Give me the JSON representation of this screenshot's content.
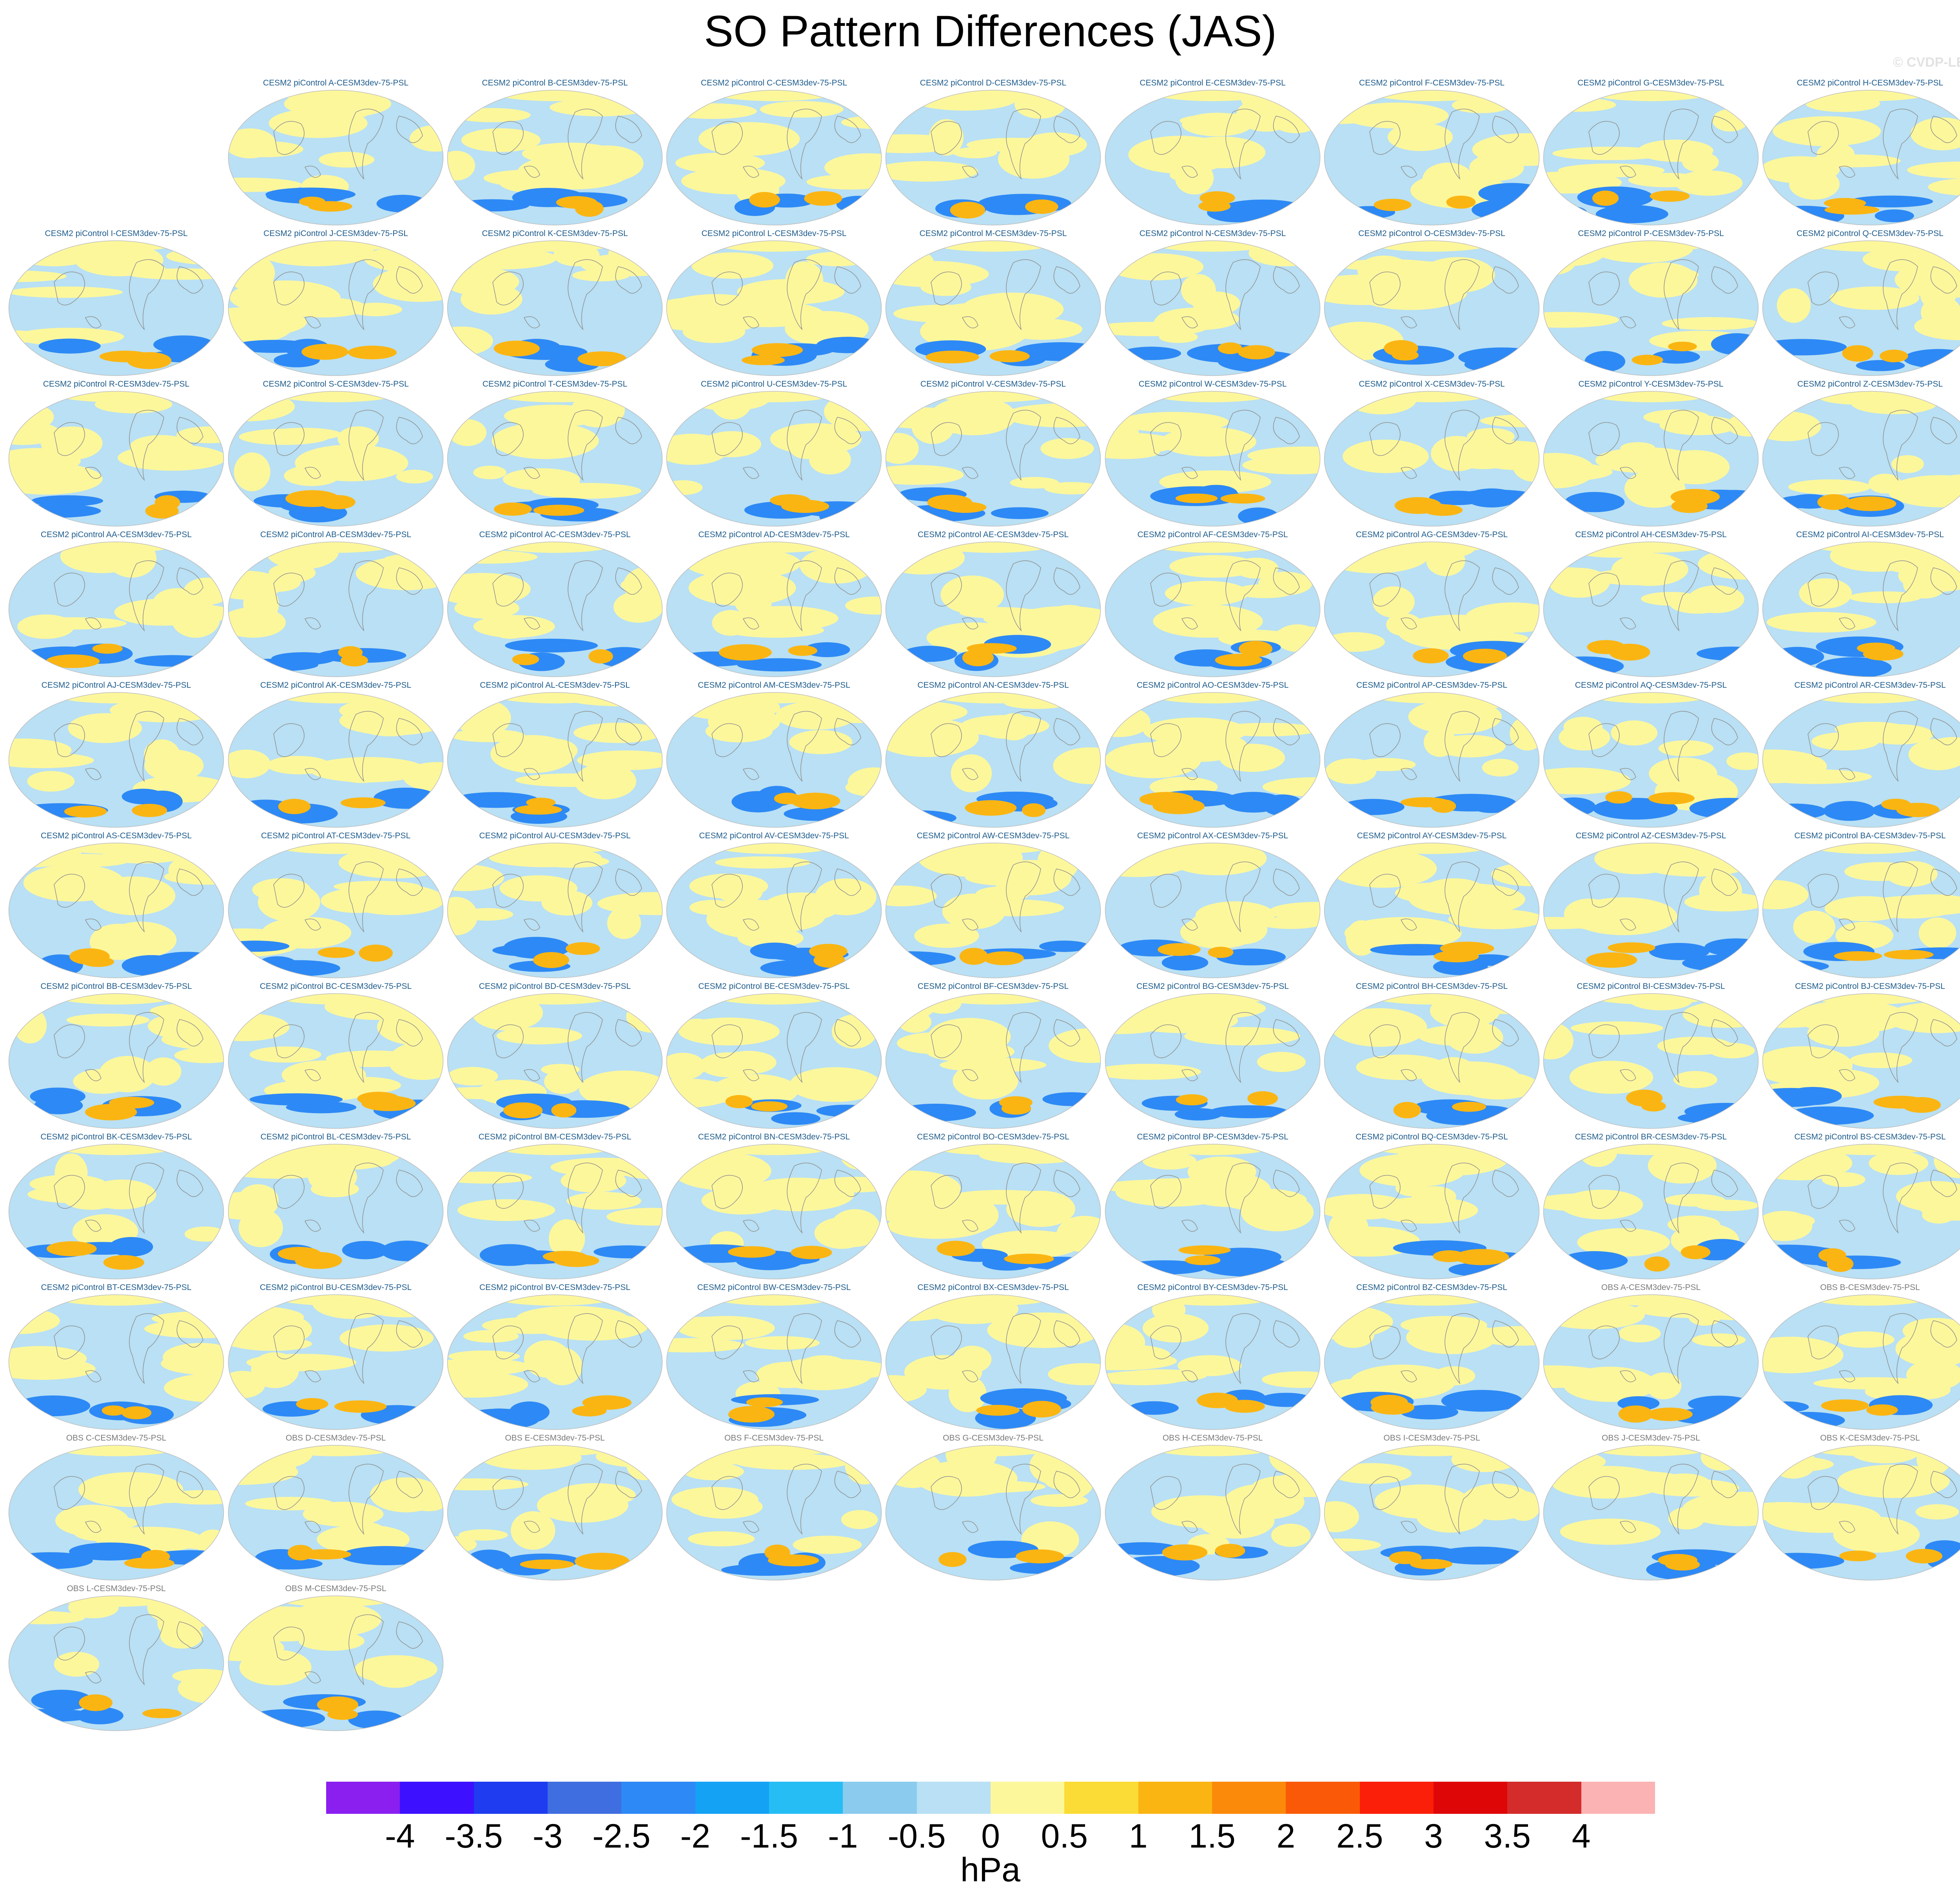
{
  "title": "SO Pattern Differences (JAS)",
  "credit": "© CVDP-LE",
  "panels": [
    {
      "label": "CESM2 piControl A-CESM3dev-75-PSL",
      "kind": "model"
    },
    {
      "label": "CESM2 piControl B-CESM3dev-75-PSL",
      "kind": "model"
    },
    {
      "label": "CESM2 piControl C-CESM3dev-75-PSL",
      "kind": "model"
    },
    {
      "label": "CESM2 piControl D-CESM3dev-75-PSL",
      "kind": "model"
    },
    {
      "label": "CESM2 piControl E-CESM3dev-75-PSL",
      "kind": "model"
    },
    {
      "label": "CESM2 piControl F-CESM3dev-75-PSL",
      "kind": "model"
    },
    {
      "label": "CESM2 piControl G-CESM3dev-75-PSL",
      "kind": "model"
    },
    {
      "label": "CESM2 piControl H-CESM3dev-75-PSL",
      "kind": "model"
    },
    {
      "label": "CESM2 piControl I-CESM3dev-75-PSL",
      "kind": "model"
    },
    {
      "label": "CESM2 piControl J-CESM3dev-75-PSL",
      "kind": "model"
    },
    {
      "label": "CESM2 piControl K-CESM3dev-75-PSL",
      "kind": "model"
    },
    {
      "label": "CESM2 piControl L-CESM3dev-75-PSL",
      "kind": "model"
    },
    {
      "label": "CESM2 piControl M-CESM3dev-75-PSL",
      "kind": "model"
    },
    {
      "label": "CESM2 piControl N-CESM3dev-75-PSL",
      "kind": "model"
    },
    {
      "label": "CESM2 piControl O-CESM3dev-75-PSL",
      "kind": "model"
    },
    {
      "label": "CESM2 piControl P-CESM3dev-75-PSL",
      "kind": "model"
    },
    {
      "label": "CESM2 piControl Q-CESM3dev-75-PSL",
      "kind": "model"
    },
    {
      "label": "CESM2 piControl R-CESM3dev-75-PSL",
      "kind": "model"
    },
    {
      "label": "CESM2 piControl S-CESM3dev-75-PSL",
      "kind": "model"
    },
    {
      "label": "CESM2 piControl T-CESM3dev-75-PSL",
      "kind": "model"
    },
    {
      "label": "CESM2 piControl U-CESM3dev-75-PSL",
      "kind": "model"
    },
    {
      "label": "CESM2 piControl V-CESM3dev-75-PSL",
      "kind": "model"
    },
    {
      "label": "CESM2 piControl W-CESM3dev-75-PSL",
      "kind": "model"
    },
    {
      "label": "CESM2 piControl X-CESM3dev-75-PSL",
      "kind": "model"
    },
    {
      "label": "CESM2 piControl Y-CESM3dev-75-PSL",
      "kind": "model"
    },
    {
      "label": "CESM2 piControl Z-CESM3dev-75-PSL",
      "kind": "model"
    },
    {
      "label": "CESM2 piControl AA-CESM3dev-75-PSL",
      "kind": "model"
    },
    {
      "label": "CESM2 piControl AB-CESM3dev-75-PSL",
      "kind": "model"
    },
    {
      "label": "CESM2 piControl AC-CESM3dev-75-PSL",
      "kind": "model"
    },
    {
      "label": "CESM2 piControl AD-CESM3dev-75-PSL",
      "kind": "model"
    },
    {
      "label": "CESM2 piControl AE-CESM3dev-75-PSL",
      "kind": "model"
    },
    {
      "label": "CESM2 piControl AF-CESM3dev-75-PSL",
      "kind": "model"
    },
    {
      "label": "CESM2 piControl AG-CESM3dev-75-PSL",
      "kind": "model"
    },
    {
      "label": "CESM2 piControl AH-CESM3dev-75-PSL",
      "kind": "model"
    },
    {
      "label": "CESM2 piControl AI-CESM3dev-75-PSL",
      "kind": "model"
    },
    {
      "label": "CESM2 piControl AJ-CESM3dev-75-PSL",
      "kind": "model"
    },
    {
      "label": "CESM2 piControl AK-CESM3dev-75-PSL",
      "kind": "model"
    },
    {
      "label": "CESM2 piControl AL-CESM3dev-75-PSL",
      "kind": "model"
    },
    {
      "label": "CESM2 piControl AM-CESM3dev-75-PSL",
      "kind": "model"
    },
    {
      "label": "CESM2 piControl AN-CESM3dev-75-PSL",
      "kind": "model"
    },
    {
      "label": "CESM2 piControl AO-CESM3dev-75-PSL",
      "kind": "model"
    },
    {
      "label": "CESM2 piControl AP-CESM3dev-75-PSL",
      "kind": "model"
    },
    {
      "label": "CESM2 piControl AQ-CESM3dev-75-PSL",
      "kind": "model"
    },
    {
      "label": "CESM2 piControl AR-CESM3dev-75-PSL",
      "kind": "model"
    },
    {
      "label": "CESM2 piControl AS-CESM3dev-75-PSL",
      "kind": "model"
    },
    {
      "label": "CESM2 piControl AT-CESM3dev-75-PSL",
      "kind": "model"
    },
    {
      "label": "CESM2 piControl AU-CESM3dev-75-PSL",
      "kind": "model"
    },
    {
      "label": "CESM2 piControl AV-CESM3dev-75-PSL",
      "kind": "model"
    },
    {
      "label": "CESM2 piControl AW-CESM3dev-75-PSL",
      "kind": "model"
    },
    {
      "label": "CESM2 piControl AX-CESM3dev-75-PSL",
      "kind": "model"
    },
    {
      "label": "CESM2 piControl AY-CESM3dev-75-PSL",
      "kind": "model"
    },
    {
      "label": "CESM2 piControl AZ-CESM3dev-75-PSL",
      "kind": "model"
    },
    {
      "label": "CESM2 piControl BA-CESM3dev-75-PSL",
      "kind": "model"
    },
    {
      "label": "CESM2 piControl BB-CESM3dev-75-PSL",
      "kind": "model"
    },
    {
      "label": "CESM2 piControl BC-CESM3dev-75-PSL",
      "kind": "model"
    },
    {
      "label": "CESM2 piControl BD-CESM3dev-75-PSL",
      "kind": "model"
    },
    {
      "label": "CESM2 piControl BE-CESM3dev-75-PSL",
      "kind": "model"
    },
    {
      "label": "CESM2 piControl BF-CESM3dev-75-PSL",
      "kind": "model"
    },
    {
      "label": "CESM2 piControl BG-CESM3dev-75-PSL",
      "kind": "model"
    },
    {
      "label": "CESM2 piControl BH-CESM3dev-75-PSL",
      "kind": "model"
    },
    {
      "label": "CESM2 piControl BI-CESM3dev-75-PSL",
      "kind": "model"
    },
    {
      "label": "CESM2 piControl BJ-CESM3dev-75-PSL",
      "kind": "model"
    },
    {
      "label": "CESM2 piControl BK-CESM3dev-75-PSL",
      "kind": "model"
    },
    {
      "label": "CESM2 piControl BL-CESM3dev-75-PSL",
      "kind": "model"
    },
    {
      "label": "CESM2 piControl BM-CESM3dev-75-PSL",
      "kind": "model"
    },
    {
      "label": "CESM2 piControl BN-CESM3dev-75-PSL",
      "kind": "model"
    },
    {
      "label": "CESM2 piControl BO-CESM3dev-75-PSL",
      "kind": "model"
    },
    {
      "label": "CESM2 piControl BP-CESM3dev-75-PSL",
      "kind": "model"
    },
    {
      "label": "CESM2 piControl BQ-CESM3dev-75-PSL",
      "kind": "model"
    },
    {
      "label": "CESM2 piControl BR-CESM3dev-75-PSL",
      "kind": "model"
    },
    {
      "label": "CESM2 piControl BS-CESM3dev-75-PSL",
      "kind": "model"
    },
    {
      "label": "CESM2 piControl BT-CESM3dev-75-PSL",
      "kind": "model"
    },
    {
      "label": "CESM2 piControl BU-CESM3dev-75-PSL",
      "kind": "model"
    },
    {
      "label": "CESM2 piControl BV-CESM3dev-75-PSL",
      "kind": "model"
    },
    {
      "label": "CESM2 piControl BW-CESM3dev-75-PSL",
      "kind": "model"
    },
    {
      "label": "CESM2 piControl BX-CESM3dev-75-PSL",
      "kind": "model"
    },
    {
      "label": "CESM2 piControl BY-CESM3dev-75-PSL",
      "kind": "model"
    },
    {
      "label": "CESM2 piControl BZ-CESM3dev-75-PSL",
      "kind": "model"
    },
    {
      "label": "OBS A-CESM3dev-75-PSL",
      "kind": "obs"
    },
    {
      "label": "OBS B-CESM3dev-75-PSL",
      "kind": "obs"
    },
    {
      "label": "OBS C-CESM3dev-75-PSL",
      "kind": "obs"
    },
    {
      "label": "OBS D-CESM3dev-75-PSL",
      "kind": "obs"
    },
    {
      "label": "OBS E-CESM3dev-75-PSL",
      "kind": "obs"
    },
    {
      "label": "OBS F-CESM3dev-75-PSL",
      "kind": "obs"
    },
    {
      "label": "OBS G-CESM3dev-75-PSL",
      "kind": "obs"
    },
    {
      "label": "OBS H-CESM3dev-75-PSL",
      "kind": "obs"
    },
    {
      "label": "OBS I-CESM3dev-75-PSL",
      "kind": "obs"
    },
    {
      "label": "OBS J-CESM3dev-75-PSL",
      "kind": "obs"
    },
    {
      "label": "OBS K-CESM3dev-75-PSL",
      "kind": "obs"
    },
    {
      "label": "OBS L-CESM3dev-75-PSL",
      "kind": "obs"
    },
    {
      "label": "OBS M-CESM3dev-75-PSL",
      "kind": "obs"
    }
  ],
  "colorbar": {
    "units": "hPa",
    "ticks": [
      "-4",
      "-3.5",
      "-3",
      "-2.5",
      "-2",
      "-1.5",
      "-1",
      "-0.5",
      "0",
      "0.5",
      "1",
      "1.5",
      "2",
      "2.5",
      "3",
      "3.5",
      "4"
    ],
    "colors": [
      "#8a1ff0",
      "#3d11ff",
      "#1f3cf0",
      "#3f6ee0",
      "#2d89f5",
      "#14a2f5",
      "#26bdf5",
      "#8bcbee",
      "#b9e0f4",
      "#fdf79c",
      "#fbdb35",
      "#fbb512",
      "#fb8a0b",
      "#fa5a07",
      "#fb1e08",
      "#df0608",
      "#d42b2b",
      "#fbb3b3"
    ]
  },
  "map_colors": {
    "ocean_positive": "#fdf79c",
    "ocean_negative": "#b9e0f4",
    "strong_positive": "#fbb512",
    "strong_negative": "#2d89f5",
    "coastline": "#8f8f8f",
    "frame": "#bdbdbd"
  }
}
